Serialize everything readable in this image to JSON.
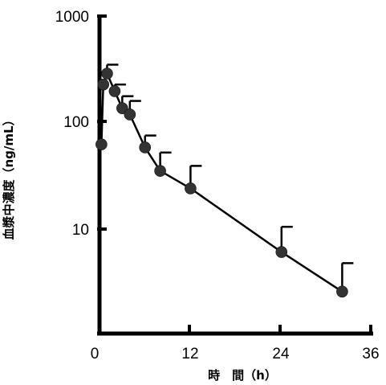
{
  "chart_data": {
    "type": "line",
    "xlabel": "時　間（h）",
    "ylabel": "血漿中濃度（ng/mL）",
    "x_scale": "linear",
    "y_scale": "log",
    "xlim": [
      0,
      36
    ],
    "ylim": [
      1,
      1000
    ],
    "x_ticks": [
      0,
      12,
      24,
      36
    ],
    "x_tick_labels": [
      "0",
      "12",
      "24",
      "36"
    ],
    "y_ticks": [
      10,
      100,
      1000
    ],
    "y_tick_labels": [
      "10",
      "100",
      "1000"
    ],
    "grid": false,
    "legend": null,
    "error_bars": "upper",
    "series": [
      {
        "x": [
          0.25,
          0.5,
          1,
          2,
          3,
          4,
          6,
          8,
          12,
          24,
          32
        ],
        "y": [
          62,
          225,
          285,
          195,
          135,
          118,
          58,
          35,
          24,
          6.1,
          2.6
        ],
        "error_upper": [
          null,
          null,
          345,
          225,
          175,
          158,
          75,
          52,
          39,
          10.5,
          4.8
        ]
      }
    ],
    "colors": {
      "line": "#000000",
      "marker": "#333333",
      "axis": "#000000"
    }
  }
}
